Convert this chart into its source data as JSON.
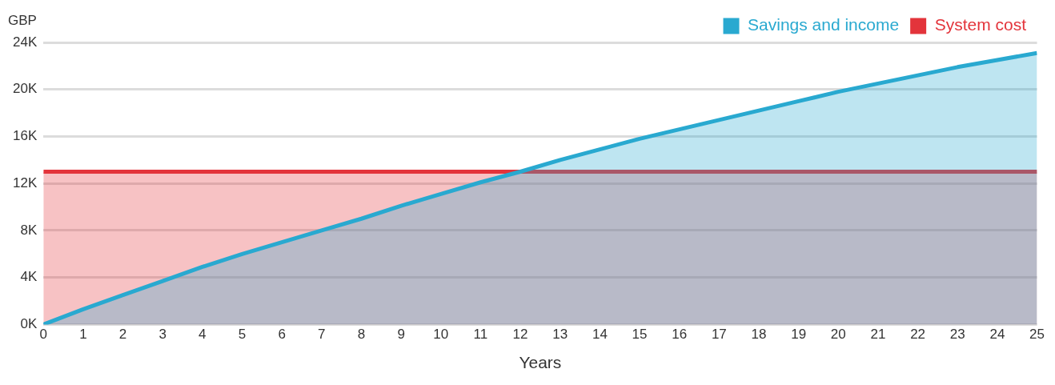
{
  "chart_data": {
    "type": "area",
    "xlabel": "Years",
    "ylabel": "GBP",
    "x": [
      0,
      1,
      2,
      3,
      4,
      5,
      6,
      7,
      8,
      9,
      10,
      11,
      12,
      13,
      14,
      15,
      16,
      17,
      18,
      19,
      20,
      21,
      22,
      23,
      24,
      25
    ],
    "series": [
      {
        "name": "Savings and income",
        "color": "#29a9d0",
        "values": [
          0,
          1.3,
          2.5,
          3.7,
          4.9,
          6.0,
          7.0,
          8.0,
          9.0,
          10.1,
          11.1,
          12.1,
          13.0,
          14.0,
          14.9,
          15.8,
          16.6,
          17.4,
          18.2,
          19.0,
          19.8,
          20.5,
          21.2,
          21.9,
          22.5,
          23.1
        ]
      },
      {
        "name": "System cost",
        "color": "#e3343b",
        "values": [
          13,
          13,
          13,
          13,
          13,
          13,
          13,
          13,
          13,
          13,
          13,
          13,
          13,
          13,
          13,
          13,
          13,
          13,
          13,
          13,
          13,
          13,
          13,
          13,
          13,
          13
        ]
      }
    ],
    "xlim": [
      0,
      25
    ],
    "xticks": [
      0,
      1,
      2,
      3,
      4,
      5,
      6,
      7,
      8,
      9,
      10,
      11,
      12,
      13,
      14,
      15,
      16,
      17,
      18,
      19,
      20,
      21,
      22,
      23,
      24,
      25
    ],
    "ylim": [
      0,
      24
    ],
    "yticks": [
      {
        "value": 0,
        "label": "0K"
      },
      {
        "value": 4,
        "label": "4K"
      },
      {
        "value": 8,
        "label": "8K"
      },
      {
        "value": 12,
        "label": "12K"
      },
      {
        "value": 16,
        "label": "16K"
      },
      {
        "value": 20,
        "label": "20K"
      },
      {
        "value": 24,
        "label": "24K"
      }
    ],
    "grid": "y",
    "legend": "top right",
    "marker": "none",
    "line_style": "solid"
  }
}
